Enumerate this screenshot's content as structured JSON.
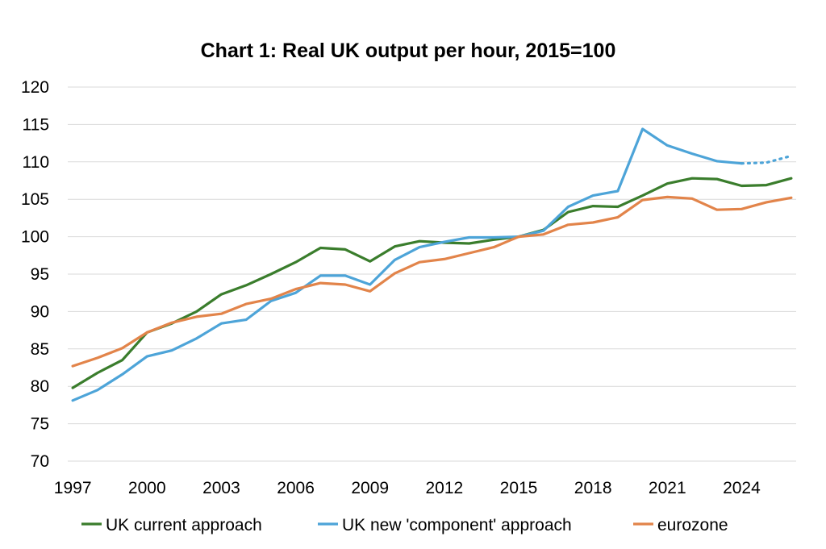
{
  "chart_data": {
    "type": "line",
    "title": "Chart 1: Real UK output per hour, 2015=100",
    "xlabel": "",
    "ylabel": "",
    "ylim": [
      70,
      120
    ],
    "yticks": [
      "120",
      "115",
      "110",
      "105",
      "100",
      "95",
      "90",
      "85",
      "80",
      "75",
      "70"
    ],
    "xticks": [
      "1997",
      "2000",
      "2003",
      "2006",
      "2009",
      "2012",
      "2015",
      "2018",
      "2021",
      "2024"
    ],
    "grid": true,
    "legend_position": "bottom",
    "x": [
      1997,
      1998,
      1999,
      2000,
      2001,
      2002,
      2003,
      2004,
      2005,
      2006,
      2007,
      2008,
      2009,
      2010,
      2011,
      2012,
      2013,
      2014,
      2015,
      2016,
      2017,
      2018,
      2019,
      2020,
      2021,
      2022,
      2023,
      2024,
      2025,
      2026
    ],
    "series": [
      {
        "name": "UK current approach",
        "color": "#3a7d2c",
        "values": [
          79.8,
          81.8,
          83.5,
          87.2,
          88.4,
          90.0,
          92.3,
          93.5,
          95.0,
          96.6,
          98.5,
          98.3,
          96.7,
          98.7,
          99.4,
          99.2,
          99.1,
          99.6,
          100.0,
          100.9,
          103.3,
          104.1,
          104.0,
          105.5,
          107.1,
          107.8,
          107.7,
          106.8,
          106.9,
          107.8
        ]
      },
      {
        "name": "UK new 'component' approach",
        "color": "#4da4d8",
        "dotted_from_x": 2024,
        "values": [
          78.1,
          79.5,
          81.6,
          84.0,
          84.8,
          86.4,
          88.4,
          88.9,
          91.4,
          92.5,
          94.8,
          94.8,
          93.6,
          96.9,
          98.6,
          99.3,
          99.9,
          99.9,
          100.0,
          100.8,
          104.0,
          105.5,
          106.1,
          114.4,
          112.2,
          111.1,
          110.1,
          109.8,
          109.9,
          110.8
        ]
      },
      {
        "name": "eurozone",
        "color": "#e2844a",
        "values": [
          82.7,
          83.8,
          85.1,
          87.2,
          88.5,
          89.3,
          89.7,
          91.0,
          91.7,
          93.0,
          93.8,
          93.6,
          92.7,
          95.1,
          96.6,
          97.0,
          97.8,
          98.6,
          100.0,
          100.3,
          101.6,
          101.9,
          102.6,
          104.9,
          105.3,
          105.1,
          103.6,
          103.7,
          104.6,
          105.2
        ]
      }
    ]
  }
}
